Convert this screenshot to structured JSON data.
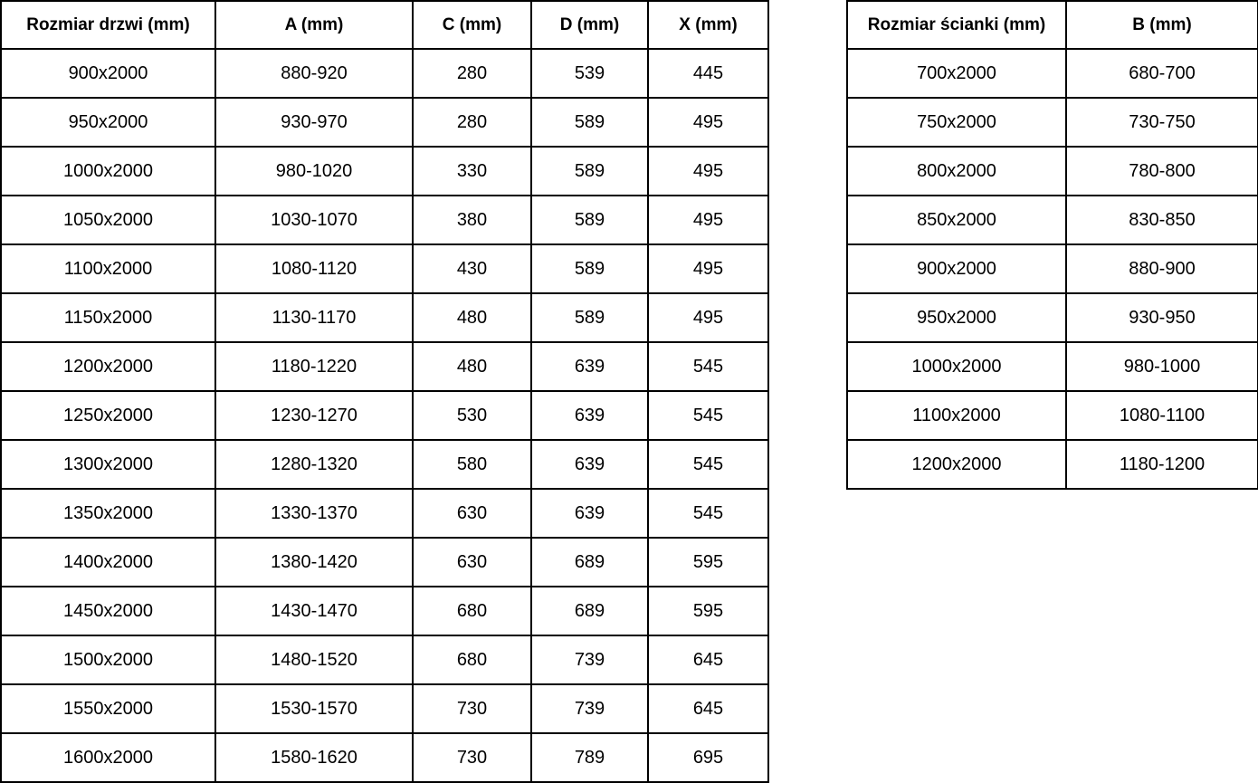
{
  "page": {
    "background_color": "#ffffff",
    "text_color": "#000000",
    "border_color": "#000000"
  },
  "tables": [
    {
      "id": "door-size-table",
      "headers": [
        "Rozmiar drzwi (mm)",
        "A (mm)",
        "C (mm)",
        "D (mm)",
        "X (mm)"
      ],
      "rows": [
        [
          "900x2000",
          "880-920",
          "280",
          "539",
          "445"
        ],
        [
          "950x2000",
          "930-970",
          "280",
          "589",
          "495"
        ],
        [
          "1000x2000",
          "980-1020",
          "330",
          "589",
          "495"
        ],
        [
          "1050x2000",
          "1030-1070",
          "380",
          "589",
          "495"
        ],
        [
          "1100x2000",
          "1080-1120",
          "430",
          "589",
          "495"
        ],
        [
          "1150x2000",
          "1130-1170",
          "480",
          "589",
          "495"
        ],
        [
          "1200x2000",
          "1180-1220",
          "480",
          "639",
          "545"
        ],
        [
          "1250x2000",
          "1230-1270",
          "530",
          "639",
          "545"
        ],
        [
          "1300x2000",
          "1280-1320",
          "580",
          "639",
          "545"
        ],
        [
          "1350x2000",
          "1330-1370",
          "630",
          "639",
          "545"
        ],
        [
          "1400x2000",
          "1380-1420",
          "630",
          "689",
          "595"
        ],
        [
          "1450x2000",
          "1430-1470",
          "680",
          "689",
          "595"
        ],
        [
          "1500x2000",
          "1480-1520",
          "680",
          "739",
          "645"
        ],
        [
          "1550x2000",
          "1530-1570",
          "730",
          "739",
          "645"
        ],
        [
          "1600x2000",
          "1580-1620",
          "730",
          "789",
          "695"
        ]
      ]
    },
    {
      "id": "wall-size-table",
      "headers": [
        "Rozmiar ścianki (mm)",
        "B (mm)"
      ],
      "rows": [
        [
          "700x2000",
          "680-700"
        ],
        [
          "750x2000",
          "730-750"
        ],
        [
          "800x2000",
          "780-800"
        ],
        [
          "850x2000",
          "830-850"
        ],
        [
          "900x2000",
          "880-900"
        ],
        [
          "950x2000",
          "930-950"
        ],
        [
          "1000x2000",
          "980-1000"
        ],
        [
          "1100x2000",
          "1080-1100"
        ],
        [
          "1200x2000",
          "1180-1200"
        ]
      ]
    }
  ]
}
